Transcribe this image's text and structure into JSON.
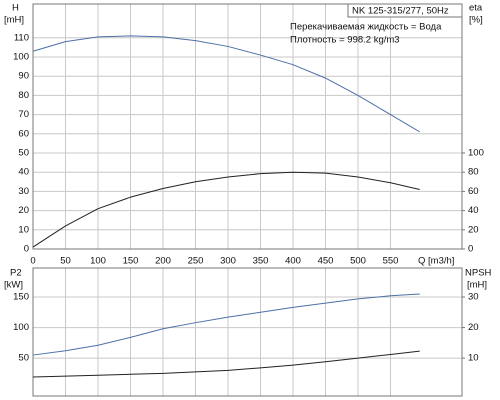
{
  "chart_data": [
    {
      "type": "line",
      "annotations": [
        "NK 125-315/277, 50Hz",
        "Перекачиваемая жидкость = Вода",
        "Плотность = 998.2 kg/m3"
      ],
      "y_label": [
        "H",
        "[mH]"
      ],
      "y2_label": [
        "eta",
        "[%]"
      ],
      "x_label": "Q [m3/h]",
      "x": [
        0,
        50,
        100,
        150,
        200,
        250,
        300,
        350,
        400,
        450,
        500,
        550,
        595
      ],
      "series": [
        {
          "name": "H",
          "color": "#4d6fa8",
          "values": [
            103,
            108,
            110.5,
            111,
            110.5,
            108.5,
            105.5,
            101,
            96,
            89,
            80,
            70,
            61
          ]
        },
        {
          "name": "eta",
          "color": "#222222",
          "axis": "y2",
          "values": [
            2,
            24,
            42,
            54,
            63,
            70,
            75,
            78.5,
            80,
            79,
            75,
            69,
            62
          ]
        }
      ],
      "xlim": [
        0,
        660
      ],
      "xticks": [
        0,
        50,
        100,
        150,
        200,
        250,
        300,
        350,
        400,
        450,
        500,
        550
      ],
      "ylim": [
        0,
        127.6
      ],
      "yticks": [
        0,
        10,
        20,
        30,
        40,
        50,
        60,
        70,
        80,
        90,
        100,
        110
      ],
      "y2lim": [
        0,
        255.2
      ],
      "y2ticks": [
        0,
        20,
        40,
        60,
        80,
        100
      ],
      "grid": true
    },
    {
      "type": "line",
      "y_label": [
        "P2",
        "[kW]"
      ],
      "y2_label": [
        "NPSH",
        "[mH]"
      ],
      "x": [
        0,
        50,
        100,
        150,
        200,
        250,
        300,
        350,
        400,
        450,
        500,
        550,
        595
      ],
      "series": [
        {
          "name": "P2",
          "color": "#4d6fa8",
          "values": [
            55,
            62,
            71,
            84,
            98,
            108,
            117,
            125,
            133,
            140,
            147,
            152,
            155
          ]
        },
        {
          "name": "NPSH",
          "color": "#222222",
          "axis": "y2",
          "values": [
            3.8,
            4.1,
            4.4,
            4.7,
            5,
            5.5,
            6,
            6.8,
            7.7,
            8.8,
            10,
            11.2,
            12.3
          ]
        }
      ],
      "xlim": [
        0,
        660
      ],
      "xticks": [
        0,
        50,
        100,
        150,
        200,
        250,
        300,
        350,
        400,
        450,
        500,
        550
      ],
      "ylim": [
        -12,
        197.5
      ],
      "yticks": [
        50,
        100,
        150
      ],
      "y2lim": [
        -2.4,
        39.5
      ],
      "y2ticks": [
        10,
        20,
        30
      ],
      "grid": true
    }
  ]
}
